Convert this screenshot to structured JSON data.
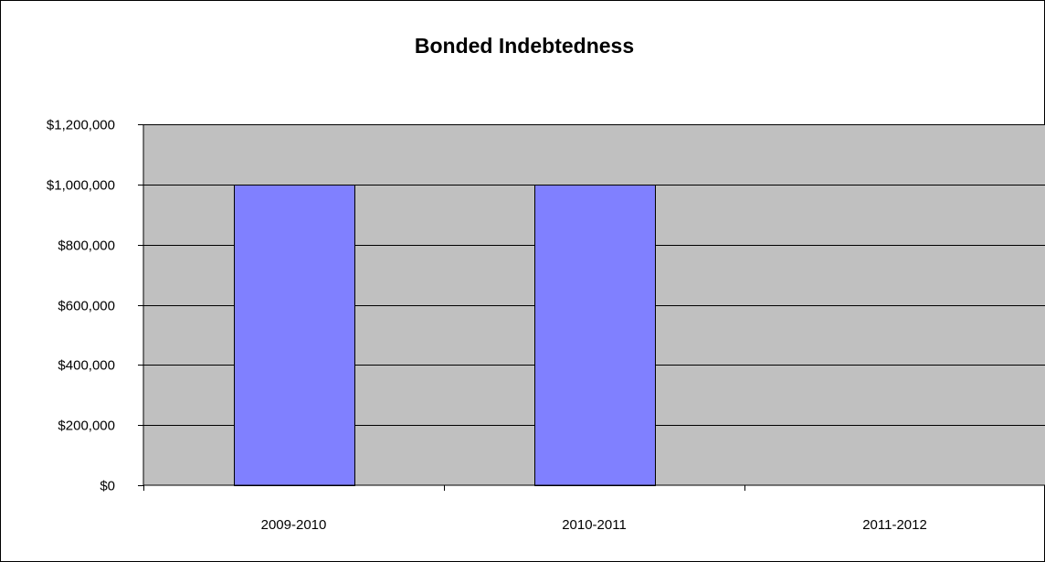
{
  "chart_data": {
    "type": "bar",
    "title": "Bonded Indebtedness",
    "xlabel": "",
    "ylabel": "",
    "categories": [
      "2009-2010",
      "2010-2011",
      "2011-2012"
    ],
    "values": [
      1000000,
      1000000,
      0
    ],
    "ylim": [
      0,
      1200000
    ],
    "y_ticks": [
      0,
      200000,
      400000,
      600000,
      800000,
      1000000,
      1200000
    ],
    "y_tick_labels": [
      "$0",
      "$200,000",
      "$400,000",
      "$600,000",
      "$800,000",
      "$1,000,000",
      "$1,200,000"
    ],
    "grid": true,
    "legend": "none",
    "colors": {
      "bar_fill": "#8080ff",
      "plot_background": "#c0c0c0",
      "gridline": "#000000",
      "outer_border": "#000000"
    }
  }
}
